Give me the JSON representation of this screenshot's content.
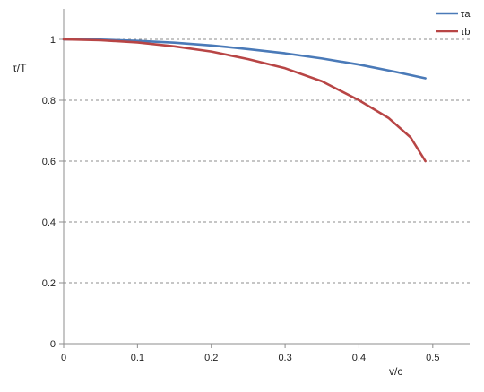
{
  "chart_data": {
    "type": "line",
    "title": "",
    "xlabel": "v/c",
    "ylabel": "τ/T",
    "xlim": [
      0,
      0.55
    ],
    "ylim": [
      0,
      1.1
    ],
    "x_ticks": [
      0,
      0.1,
      0.2,
      0.3,
      0.4,
      0.5
    ],
    "x_tick_labels": [
      "0",
      "0.1",
      "0.2",
      "0.3",
      "0.4",
      "0.5"
    ],
    "y_ticks": [
      0,
      0.2,
      0.4,
      0.6,
      0.8,
      1
    ],
    "y_tick_labels": [
      "0",
      "0.2",
      "0.4",
      "0.6",
      "0.8",
      "1"
    ],
    "grid": "horizontal dashed",
    "legend_position": "top-right",
    "series": [
      {
        "name": "τa",
        "color": "#4a7ab8",
        "points": [
          [
            0,
            1
          ],
          [
            0.05,
            0.999
          ],
          [
            0.1,
            0.995
          ],
          [
            0.15,
            0.989
          ],
          [
            0.2,
            0.98
          ],
          [
            0.25,
            0.968
          ],
          [
            0.3,
            0.954
          ],
          [
            0.35,
            0.937
          ],
          [
            0.4,
            0.917
          ],
          [
            0.45,
            0.893
          ],
          [
            0.49,
            0.872
          ]
        ]
      },
      {
        "name": "τb",
        "color": "#b84545",
        "points": [
          [
            0,
            1
          ],
          [
            0.05,
            0.997
          ],
          [
            0.1,
            0.99
          ],
          [
            0.15,
            0.977
          ],
          [
            0.2,
            0.96
          ],
          [
            0.25,
            0.935
          ],
          [
            0.3,
            0.905
          ],
          [
            0.35,
            0.862
          ],
          [
            0.4,
            0.8
          ],
          [
            0.44,
            0.742
          ],
          [
            0.47,
            0.678
          ],
          [
            0.49,
            0.6
          ]
        ]
      }
    ]
  }
}
